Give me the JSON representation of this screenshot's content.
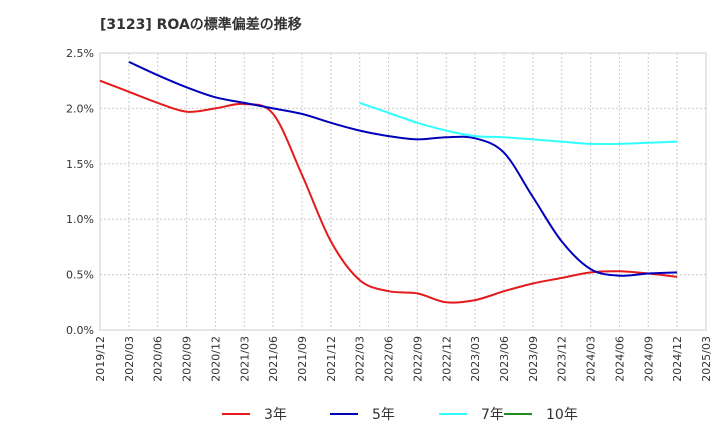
{
  "chart_data": {
    "type": "line",
    "title": "[3123]  ROAの標準偏差の推移",
    "xlabel": "",
    "ylabel": "",
    "x_ticks": [
      "2019/12",
      "2020/03",
      "2020/06",
      "2020/09",
      "2020/12",
      "2021/03",
      "2021/06",
      "2021/09",
      "2021/12",
      "2022/03",
      "2022/06",
      "2022/09",
      "2022/12",
      "2023/03",
      "2023/06",
      "2023/09",
      "2023/12",
      "2024/03",
      "2024/06",
      "2024/09",
      "2024/12",
      "2025/03"
    ],
    "y_ticks": [
      0.0,
      0.5,
      1.0,
      1.5,
      2.0,
      2.5
    ],
    "y_tick_labels": [
      "0.0%",
      "0.5%",
      "1.0%",
      "1.5%",
      "2.0%",
      "2.5%"
    ],
    "ylim": [
      0,
      2.5
    ],
    "grid": true,
    "legend_position": "bottom",
    "series": [
      {
        "name": "3年",
        "color": "#e41a1c",
        "points": [
          [
            "2019/12",
            2.25
          ],
          [
            "2020/03",
            2.15
          ],
          [
            "2020/06",
            2.05
          ],
          [
            "2020/09",
            1.97
          ],
          [
            "2020/12",
            2.0
          ],
          [
            "2021/03",
            2.04
          ],
          [
            "2021/06",
            1.95
          ],
          [
            "2021/09",
            1.4
          ],
          [
            "2021/12",
            0.8
          ],
          [
            "2022/03",
            0.45
          ],
          [
            "2022/06",
            0.35
          ],
          [
            "2022/09",
            0.33
          ],
          [
            "2022/12",
            0.25
          ],
          [
            "2023/03",
            0.27
          ],
          [
            "2023/06",
            0.35
          ],
          [
            "2023/09",
            0.42
          ],
          [
            "2023/12",
            0.47
          ],
          [
            "2024/03",
            0.52
          ],
          [
            "2024/06",
            0.53
          ],
          [
            "2024/09",
            0.51
          ],
          [
            "2024/12",
            0.48
          ]
        ]
      },
      {
        "name": "5年",
        "color": "#0000bb",
        "points": [
          [
            "2020/03",
            2.42
          ],
          [
            "2020/06",
            2.3
          ],
          [
            "2020/09",
            2.19
          ],
          [
            "2020/12",
            2.1
          ],
          [
            "2021/03",
            2.05
          ],
          [
            "2021/06",
            2.0
          ],
          [
            "2021/09",
            1.95
          ],
          [
            "2021/12",
            1.87
          ],
          [
            "2022/03",
            1.8
          ],
          [
            "2022/06",
            1.75
          ],
          [
            "2022/09",
            1.72
          ],
          [
            "2022/12",
            1.74
          ],
          [
            "2023/03",
            1.73
          ],
          [
            "2023/06",
            1.6
          ],
          [
            "2023/09",
            1.2
          ],
          [
            "2023/12",
            0.8
          ],
          [
            "2024/03",
            0.55
          ],
          [
            "2024/06",
            0.49
          ],
          [
            "2024/09",
            0.51
          ],
          [
            "2024/12",
            0.52
          ]
        ]
      },
      {
        "name": "7年",
        "color": "#33ffff",
        "points": [
          [
            "2022/03",
            2.05
          ],
          [
            "2022/06",
            1.96
          ],
          [
            "2022/09",
            1.87
          ],
          [
            "2022/12",
            1.8
          ],
          [
            "2023/03",
            1.75
          ],
          [
            "2023/06",
            1.74
          ],
          [
            "2023/09",
            1.72
          ],
          [
            "2023/12",
            1.7
          ],
          [
            "2024/03",
            1.68
          ],
          [
            "2024/06",
            1.68
          ],
          [
            "2024/09",
            1.69
          ],
          [
            "2024/12",
            1.7
          ]
        ]
      },
      {
        "name": "10年",
        "color": "#228b22",
        "points": []
      }
    ]
  }
}
